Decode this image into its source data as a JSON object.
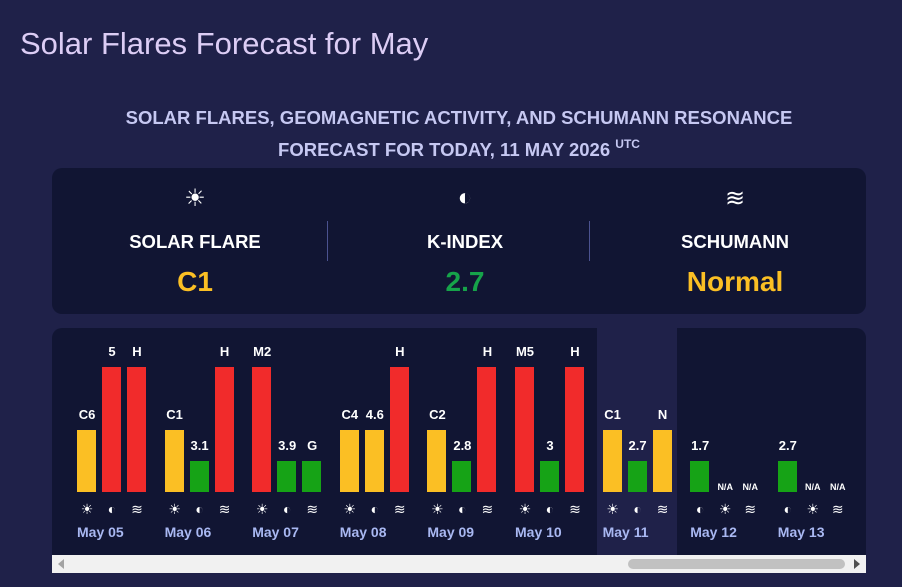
{
  "title": "Solar Flares Forecast for May",
  "subtitle": {
    "text": "SOLAR FLARES, GEOMAGNETIC ACTIVITY, AND SCHUMANN RESONANCE FORECAST FOR TODAY, 11 MAY 2026",
    "sup": "UTC"
  },
  "summary": [
    {
      "icon": "☀",
      "label": "SOLAR FLARE",
      "value": "C1",
      "color": "#fbbf24"
    },
    {
      "icon": "◐",
      "label": "K-INDEX",
      "value": "2.7",
      "color": "#16a34a"
    },
    {
      "icon": "≋",
      "label": "SCHUMANN",
      "value": "Normal",
      "color": "#fbbf24"
    }
  ],
  "days": [
    {
      "date": "May 05",
      "today": false,
      "bars": [
        {
          "icon": "☀",
          "label": "C6",
          "level": 2,
          "color": "#fbbf24"
        },
        {
          "icon": "◐",
          "label": "5",
          "level": 4,
          "color": "#f12b2b"
        },
        {
          "icon": "≋",
          "label": "H",
          "level": 4,
          "color": "#f12b2b"
        }
      ]
    },
    {
      "date": "May 06",
      "today": false,
      "bars": [
        {
          "icon": "☀",
          "label": "C1",
          "level": 2,
          "color": "#fbbf24"
        },
        {
          "icon": "◐",
          "label": "3.1",
          "level": 1,
          "color": "#16a316"
        },
        {
          "icon": "≋",
          "label": "H",
          "level": 4,
          "color": "#f12b2b"
        }
      ]
    },
    {
      "date": "May 07",
      "today": false,
      "bars": [
        {
          "icon": "☀",
          "label": "M2",
          "level": 4,
          "color": "#f12b2b"
        },
        {
          "icon": "◐",
          "label": "3.9",
          "level": 1,
          "color": "#16a316"
        },
        {
          "icon": "≋",
          "label": "G",
          "level": 1,
          "color": "#16a316"
        }
      ]
    },
    {
      "date": "May 08",
      "today": false,
      "bars": [
        {
          "icon": "☀",
          "label": "C4",
          "level": 2,
          "color": "#fbbf24"
        },
        {
          "icon": "◐",
          "label": "4.6",
          "level": 2,
          "color": "#fbbf24"
        },
        {
          "icon": "≋",
          "label": "H",
          "level": 4,
          "color": "#f12b2b"
        }
      ]
    },
    {
      "date": "May 09",
      "today": false,
      "bars": [
        {
          "icon": "☀",
          "label": "C2",
          "level": 2,
          "color": "#fbbf24"
        },
        {
          "icon": "◐",
          "label": "2.8",
          "level": 1,
          "color": "#16a316"
        },
        {
          "icon": "≋",
          "label": "H",
          "level": 4,
          "color": "#f12b2b"
        }
      ]
    },
    {
      "date": "May 10",
      "today": false,
      "bars": [
        {
          "icon": "☀",
          "label": "M5",
          "level": 4,
          "color": "#f12b2b"
        },
        {
          "icon": "◐",
          "label": "3",
          "level": 1,
          "color": "#16a316"
        },
        {
          "icon": "≋",
          "label": "H",
          "level": 4,
          "color": "#f12b2b"
        }
      ]
    },
    {
      "date": "May 11",
      "today": true,
      "bars": [
        {
          "icon": "☀",
          "label": "C1",
          "level": 2,
          "color": "#fbbf24"
        },
        {
          "icon": "◐",
          "label": "2.7",
          "level": 1,
          "color": "#16a316"
        },
        {
          "icon": "≋",
          "label": "N",
          "level": 2,
          "color": "#fbbf24"
        }
      ]
    },
    {
      "date": "May 12",
      "today": false,
      "bars": [
        {
          "icon": "◐",
          "label": "1.7",
          "level": 1,
          "color": "#16a316"
        },
        {
          "icon": "☀",
          "label": "N/A",
          "level": null,
          "color": "#16a316"
        },
        {
          "icon": "≋",
          "label": "N/A",
          "level": null,
          "color": "#16a316"
        }
      ]
    },
    {
      "date": "May 13",
      "today": false,
      "bars": [
        {
          "icon": "◐",
          "label": "2.7",
          "level": 1,
          "color": "#16a316"
        },
        {
          "icon": "☀",
          "label": "N/A",
          "level": null,
          "color": "#16a316"
        },
        {
          "icon": "≋",
          "label": "N/A",
          "level": null,
          "color": "#16a316"
        }
      ]
    }
  ]
}
